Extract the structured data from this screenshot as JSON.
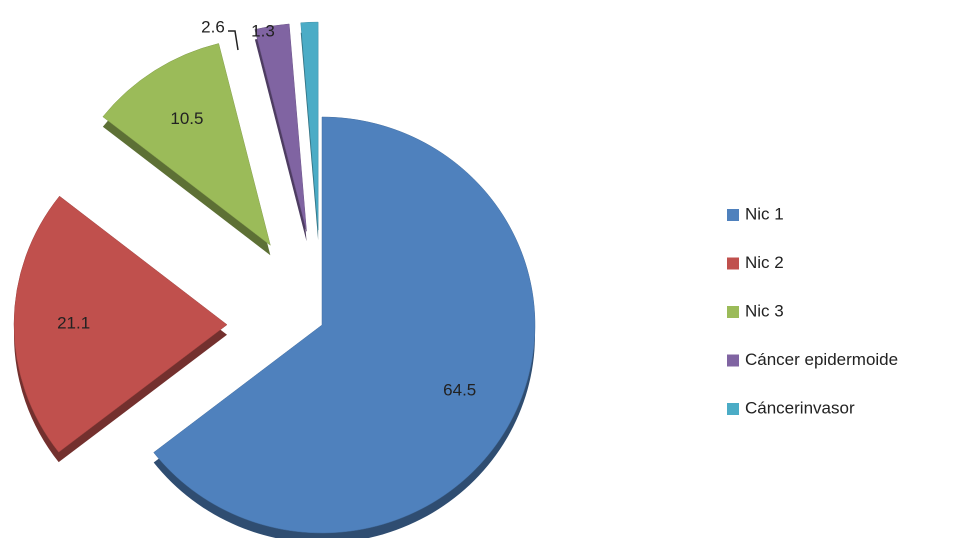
{
  "chart_data": {
    "type": "pie",
    "categories": [
      "Nic 1",
      "Nic 2",
      "Nic 3",
      "Cáncer epidermoide",
      "Cáncerinvasor"
    ],
    "values": [
      64.5,
      21.1,
      10.5,
      2.6,
      1.3
    ],
    "colors": [
      "#4f81bd",
      "#c0504d",
      "#9bbb59",
      "#8064a2",
      "#4bacc6"
    ],
    "legend": "right"
  }
}
